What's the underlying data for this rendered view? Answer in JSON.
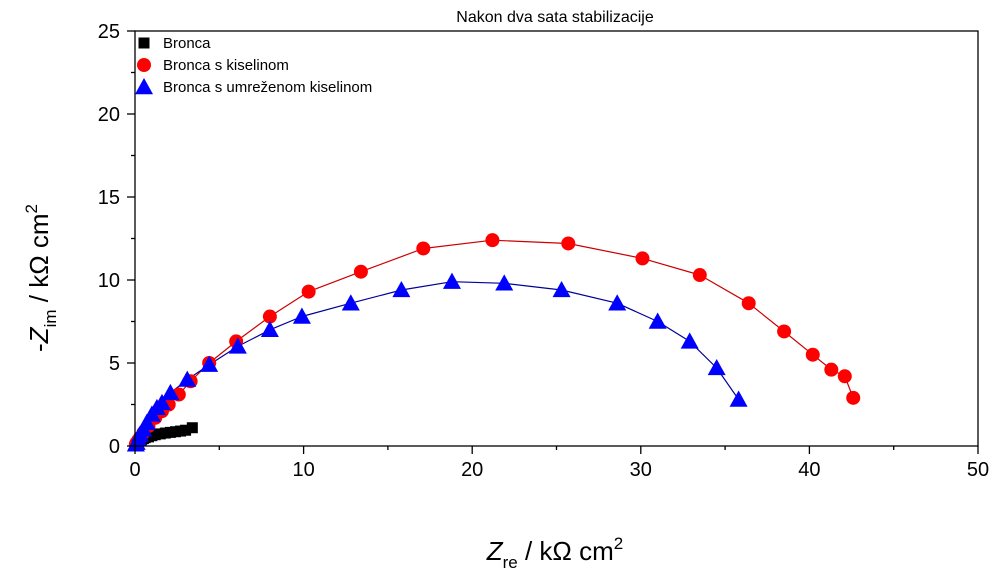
{
  "chart_data": {
    "type": "scatter",
    "title": "Nakon dva sata stabilizacije",
    "xlabel": {
      "symbol": "Z",
      "sub": "re",
      "unit": " / kΩ cm",
      "sup": "2"
    },
    "ylabel": {
      "prefix": "-",
      "symbol": "Z",
      "sub": "im",
      "unit": " / kΩ cm",
      "sup": "2"
    },
    "xlim": [
      0,
      50
    ],
    "ylim": [
      0,
      25
    ],
    "xticks": [
      "0",
      "10",
      "20",
      "30",
      "40",
      "50"
    ],
    "yticks": [
      "0",
      "5",
      "10",
      "15",
      "20",
      "25"
    ],
    "legend_position": "top-left",
    "series": [
      {
        "name": "Bronca",
        "marker": "square",
        "color": "#000000",
        "fit": false,
        "x": [
          0.05,
          0.08,
          0.12,
          0.16,
          0.2,
          0.25,
          0.3,
          0.4,
          0.5,
          0.6,
          0.8,
          1.0,
          1.2,
          1.5,
          1.8,
          2.1,
          2.4,
          2.7,
          3.0,
          3.4
        ],
        "y": [
          0.05,
          0.1,
          0.15,
          0.2,
          0.25,
          0.3,
          0.35,
          0.4,
          0.45,
          0.5,
          0.55,
          0.62,
          0.68,
          0.73,
          0.78,
          0.82,
          0.86,
          0.9,
          0.95,
          1.1
        ]
      },
      {
        "name": "Bronca s kiselinom",
        "marker": "circle",
        "color": "#ff0000",
        "fit": true,
        "fit_color": "#cc0000",
        "x": [
          0.05,
          0.1,
          0.2,
          0.3,
          0.5,
          0.8,
          1.2,
          1.6,
          2.0,
          2.6,
          3.3,
          4.4,
          6.0,
          8.0,
          10.3,
          13.4,
          17.1,
          21.2,
          25.7,
          30.1,
          33.5,
          36.4,
          38.5,
          40.2,
          41.3,
          42.1,
          42.6
        ],
        "y": [
          0.1,
          0.2,
          0.35,
          0.5,
          0.8,
          1.2,
          1.7,
          2.1,
          2.5,
          3.1,
          3.9,
          5.0,
          6.3,
          7.8,
          9.3,
          10.5,
          11.9,
          12.4,
          12.2,
          11.3,
          10.3,
          8.6,
          6.9,
          5.5,
          4.6,
          4.2,
          2.9
        ]
      },
      {
        "name": "Bronca s umreženom kiselinom",
        "marker": "triangle",
        "color": "#0000ff",
        "fit": true,
        "fit_color": "#000099",
        "x": [
          0.05,
          0.1,
          0.2,
          0.3,
          0.5,
          0.7,
          1.0,
          1.3,
          1.6,
          2.1,
          3.1,
          4.4,
          6.1,
          8.0,
          9.9,
          12.8,
          15.8,
          18.8,
          21.9,
          25.3,
          28.6,
          31.0,
          32.9,
          34.5,
          35.8
        ],
        "y": [
          0.1,
          0.2,
          0.4,
          0.7,
          1.0,
          1.4,
          1.9,
          2.3,
          2.6,
          3.2,
          4.0,
          4.9,
          6.0,
          7.0,
          7.8,
          8.6,
          9.4,
          9.9,
          9.8,
          9.4,
          8.6,
          7.5,
          6.3,
          4.7,
          2.8
        ]
      }
    ]
  }
}
